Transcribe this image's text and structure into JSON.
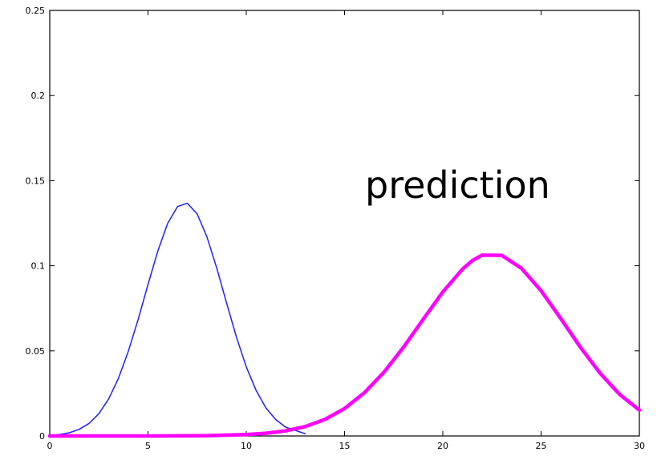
{
  "chart_data": {
    "type": "line",
    "title": "",
    "xlabel": "",
    "ylabel": "",
    "xlim": [
      0,
      30
    ],
    "ylim": [
      0,
      0.25
    ],
    "xticks": [
      0,
      5,
      10,
      15,
      20,
      25,
      30
    ],
    "xtick_labels": [
      "0",
      "5",
      "10",
      "15",
      "20",
      "25",
      "30"
    ],
    "yticks": [
      0,
      0.05,
      0.1,
      0.15,
      0.2,
      0.25
    ],
    "ytick_labels": [
      "0",
      "0.05",
      "0.1",
      "0.15",
      "0.2",
      "0.25"
    ],
    "grid": false,
    "annotation": "prediction",
    "series": [
      {
        "color": "#1f1fff",
        "stroke": "thin",
        "x": [
          0,
          0.5,
          1,
          1.5,
          2,
          2.5,
          3,
          3.5,
          4,
          4.5,
          5,
          5.5,
          6,
          6.5,
          7,
          7.5,
          8,
          8.5,
          9,
          9.5,
          10,
          10.5,
          11,
          11.5,
          12,
          13
        ],
        "y": [
          0.0004,
          0.0009,
          0.0019,
          0.0039,
          0.0074,
          0.0131,
          0.0218,
          0.034,
          0.0498,
          0.0686,
          0.089,
          0.1087,
          0.1249,
          0.1348,
          0.1367,
          0.1304,
          0.1169,
          0.0985,
          0.078,
          0.058,
          0.0406,
          0.0267,
          0.0165,
          0.0096,
          0.0052,
          0.0013
        ]
      },
      {
        "color": "#ff00ff",
        "stroke": "thick",
        "x": [
          0,
          5,
          8,
          10,
          11,
          12,
          13,
          14,
          15,
          16,
          17,
          18,
          19,
          20,
          21,
          21.5,
          22,
          23,
          24,
          25,
          26,
          27,
          28,
          29,
          30
        ],
        "y": [
          0,
          0,
          0.0002,
          0.0008,
          0.0016,
          0.003,
          0.0055,
          0.0097,
          0.0161,
          0.0253,
          0.0374,
          0.0521,
          0.0685,
          0.0846,
          0.098,
          0.103,
          0.1062,
          0.1061,
          0.0985,
          0.0853,
          0.069,
          0.0521,
          0.0369,
          0.0244,
          0.0152
        ]
      }
    ]
  }
}
